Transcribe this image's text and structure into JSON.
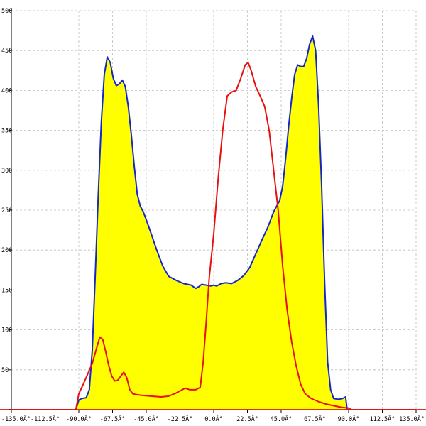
{
  "chart_data": {
    "type": "area",
    "title": "",
    "xlabel": "",
    "ylabel": "",
    "xlim": [
      -135,
      135
    ],
    "ylim": [
      0,
      500
    ],
    "grid": true,
    "x_ticks": [
      -135,
      -112.5,
      -90,
      -67.5,
      -45,
      -22.5,
      0,
      22.5,
      45,
      67.5,
      90,
      112.5,
      135
    ],
    "x_tick_labels": [
      "-135.0Â°",
      "-112.5Â°",
      "-90.0Â°",
      "-67.5Â°",
      "-45.0Â°",
      "-22.5Â°",
      "0.0Â°",
      "22.5Â°",
      "45.0Â°",
      "67.5Â°",
      "90.0Â°",
      "112.5Â°",
      "135.0Â°"
    ],
    "y_ticks": [
      0,
      50,
      100,
      150,
      200,
      250,
      300,
      350,
      400,
      450,
      500
    ],
    "y_tick_labels": [
      "0",
      "50",
      "100",
      "150",
      "200",
      "250",
      "300",
      "350",
      "400",
      "450",
      "500"
    ],
    "series": [
      {
        "color": "#1428c8",
        "fill": "#ffff00",
        "points": [
          [
            -135,
            0
          ],
          [
            -92,
            0
          ],
          [
            -90,
            12
          ],
          [
            -88,
            14
          ],
          [
            -85,
            15
          ],
          [
            -83,
            25
          ],
          [
            -81,
            75
          ],
          [
            -79,
            170
          ],
          [
            -77,
            270
          ],
          [
            -75,
            360
          ],
          [
            -73,
            420
          ],
          [
            -71,
            442
          ],
          [
            -69,
            435
          ],
          [
            -67,
            415
          ],
          [
            -65,
            406
          ],
          [
            -63,
            408
          ],
          [
            -61,
            413
          ],
          [
            -59,
            405
          ],
          [
            -57,
            380
          ],
          [
            -55,
            345
          ],
          [
            -53,
            305
          ],
          [
            -51,
            270
          ],
          [
            -49,
            255
          ],
          [
            -47,
            248
          ],
          [
            -45,
            238
          ],
          [
            -42,
            222
          ],
          [
            -38,
            200
          ],
          [
            -34,
            180
          ],
          [
            -30,
            167
          ],
          [
            -25,
            162
          ],
          [
            -20,
            158
          ],
          [
            -15,
            156
          ],
          [
            -12,
            152
          ],
          [
            -10,
            154
          ],
          [
            -8,
            157
          ],
          [
            -5,
            156
          ],
          [
            -2,
            155
          ],
          [
            0,
            156
          ],
          [
            2,
            155
          ],
          [
            5,
            158
          ],
          [
            8,
            159
          ],
          [
            12,
            158
          ],
          [
            16,
            162
          ],
          [
            20,
            168
          ],
          [
            24,
            178
          ],
          [
            28,
            195
          ],
          [
            32,
            212
          ],
          [
            36,
            228
          ],
          [
            40,
            248
          ],
          [
            44,
            262
          ],
          [
            46,
            280
          ],
          [
            48,
            315
          ],
          [
            50,
            355
          ],
          [
            52,
            390
          ],
          [
            54,
            420
          ],
          [
            56,
            432
          ],
          [
            58,
            430
          ],
          [
            60,
            430
          ],
          [
            62,
            440
          ],
          [
            64,
            458
          ],
          [
            66,
            468
          ],
          [
            68,
            450
          ],
          [
            70,
            380
          ],
          [
            72,
            280
          ],
          [
            74,
            160
          ],
          [
            76,
            60
          ],
          [
            78,
            25
          ],
          [
            80,
            14
          ],
          [
            83,
            13
          ],
          [
            86,
            14
          ],
          [
            88,
            16
          ],
          [
            89,
            0
          ],
          [
            135,
            0
          ]
        ]
      },
      {
        "color": "#e81010",
        "fill": "none",
        "points": [
          [
            -135,
            0
          ],
          [
            -92,
            0
          ],
          [
            -90,
            20
          ],
          [
            -87,
            32
          ],
          [
            -84,
            45
          ],
          [
            -81,
            58
          ],
          [
            -78,
            78
          ],
          [
            -76,
            91
          ],
          [
            -74,
            88
          ],
          [
            -72,
            72
          ],
          [
            -70,
            55
          ],
          [
            -68,
            42
          ],
          [
            -66,
            36
          ],
          [
            -64,
            37
          ],
          [
            -62,
            42
          ],
          [
            -60,
            47
          ],
          [
            -58,
            40
          ],
          [
            -56,
            25
          ],
          [
            -54,
            20
          ],
          [
            -52,
            19
          ],
          [
            -48,
            18
          ],
          [
            -42,
            17
          ],
          [
            -35,
            16
          ],
          [
            -30,
            17
          ],
          [
            -25,
            21
          ],
          [
            -22,
            24
          ],
          [
            -19,
            27
          ],
          [
            -16,
            25
          ],
          [
            -12,
            25
          ],
          [
            -9,
            28
          ],
          [
            -7,
            60
          ],
          [
            -5,
            110
          ],
          [
            -3,
            165
          ],
          [
            0,
            220
          ],
          [
            3,
            290
          ],
          [
            6,
            350
          ],
          [
            9,
            393
          ],
          [
            12,
            398
          ],
          [
            15,
            400
          ],
          [
            18,
            415
          ],
          [
            21,
            432
          ],
          [
            23,
            435
          ],
          [
            25,
            425
          ],
          [
            28,
            405
          ],
          [
            31,
            393
          ],
          [
            34,
            380
          ],
          [
            37,
            350
          ],
          [
            40,
            300
          ],
          [
            43,
            250
          ],
          [
            46,
            180
          ],
          [
            49,
            125
          ],
          [
            52,
            85
          ],
          [
            55,
            55
          ],
          [
            58,
            32
          ],
          [
            61,
            20
          ],
          [
            65,
            14
          ],
          [
            70,
            10
          ],
          [
            75,
            7
          ],
          [
            80,
            5
          ],
          [
            85,
            3
          ],
          [
            90,
            2
          ],
          [
            92,
            0
          ],
          [
            135,
            0
          ]
        ]
      }
    ]
  }
}
